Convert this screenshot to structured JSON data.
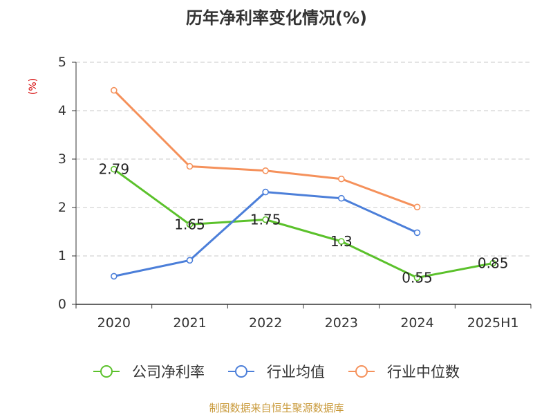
{
  "chart_data": {
    "type": "line",
    "title": "历年净利率变化情况(%)",
    "ylabel": "(%)",
    "xlabel": "",
    "categories": [
      "2020",
      "2021",
      "2022",
      "2023",
      "2024",
      "2025H1"
    ],
    "ylim": [
      0,
      5
    ],
    "yticks": [
      0,
      1,
      2,
      3,
      4,
      5
    ],
    "grid": true,
    "legend_position": "bottom",
    "series": [
      {
        "name": "公司净利率",
        "color": "#5bc12b",
        "values": [
          2.79,
          1.65,
          1.75,
          1.3,
          0.55,
          0.85
        ],
        "data_labels": true
      },
      {
        "name": "行业均值",
        "color": "#4c7fd9",
        "values": [
          0.58,
          0.91,
          2.32,
          2.19,
          1.48,
          null
        ],
        "data_labels": false
      },
      {
        "name": "行业中位数",
        "color": "#f5915b",
        "values": [
          4.42,
          2.85,
          2.76,
          2.59,
          2.01,
          null
        ],
        "data_labels": false
      }
    ]
  },
  "footer": {
    "source": "制图数据来自恒生聚源数据库"
  }
}
